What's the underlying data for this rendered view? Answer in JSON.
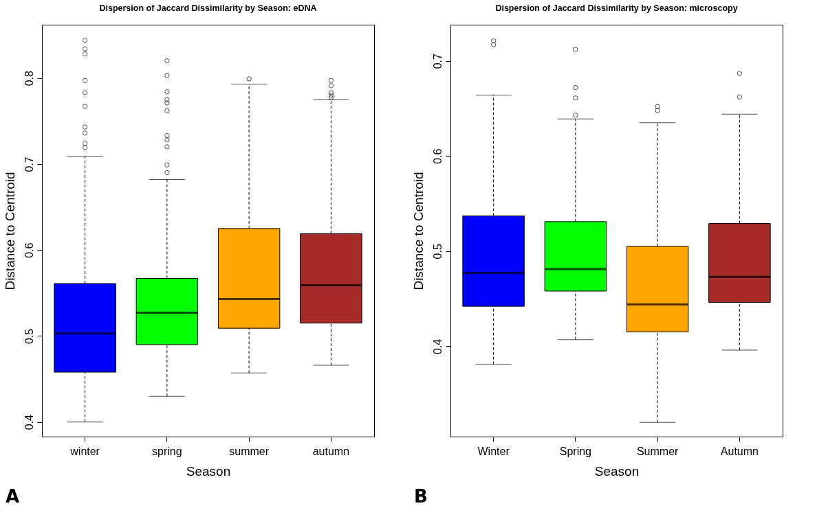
{
  "chart_data": [
    {
      "type": "box",
      "title": "Dispersion of Jaccard Dissimilarity by Season: eDNA",
      "xlabel": "Season",
      "ylabel": "Distance to Centroid",
      "categories": [
        "winter",
        "spring",
        "summer",
        "autumn"
      ],
      "colors": [
        "#0000ff",
        "#00ff00",
        "#ffa500",
        "#a52a2a"
      ],
      "line_style": "dashed",
      "ylim": [
        0.383,
        0.862
      ],
      "yticks": [
        0.4,
        0.5,
        0.6,
        0.7,
        0.8
      ],
      "grid": false,
      "annotations": [
        "A"
      ],
      "boxes": [
        {
          "low": 0.4,
          "q1": 0.458,
          "median": 0.503,
          "q3": 0.561,
          "high": 0.709,
          "outliers": [
            0.844,
            0.834,
            0.828,
            0.797,
            0.783,
            0.767,
            0.743,
            0.736,
            0.724,
            0.719
          ]
        },
        {
          "low": 0.43,
          "q1": 0.49,
          "median": 0.527,
          "q3": 0.567,
          "high": 0.682,
          "outliers": [
            0.82,
            0.803,
            0.784,
            0.775,
            0.771,
            0.762,
            0.733,
            0.728,
            0.72,
            0.699,
            0.69
          ]
        },
        {
          "low": 0.457,
          "q1": 0.509,
          "median": 0.543,
          "q3": 0.625,
          "high": 0.793,
          "outliers": [
            0.799
          ]
        },
        {
          "low": 0.466,
          "q1": 0.515,
          "median": 0.559,
          "q3": 0.619,
          "high": 0.775,
          "outliers": [
            0.797,
            0.791,
            0.783,
            0.78,
            0.777
          ]
        }
      ]
    },
    {
      "type": "box",
      "title": "Dispersion of Jaccard Dissimilarity by Season: microscopy",
      "xlabel": "Season",
      "ylabel": "Distance to Centroid",
      "categories": [
        "Winter",
        "Spring",
        "Summer",
        "Autumn"
      ],
      "colors": [
        "#0000ff",
        "#00ff00",
        "#ffa500",
        "#a52a2a"
      ],
      "line_style": "dashed",
      "ylim": [
        0.305,
        0.738
      ],
      "yticks": [
        0.4,
        0.5,
        0.6,
        0.7
      ],
      "grid": false,
      "annotations": [
        "B"
      ],
      "boxes": [
        {
          "low": 0.381,
          "q1": 0.442,
          "median": 0.477,
          "q3": 0.537,
          "high": 0.664,
          "outliers": [
            0.721,
            0.717
          ]
        },
        {
          "low": 0.407,
          "q1": 0.458,
          "median": 0.481,
          "q3": 0.531,
          "high": 0.639,
          "outliers": [
            0.712,
            0.672,
            0.661,
            0.643
          ]
        },
        {
          "low": 0.32,
          "q1": 0.415,
          "median": 0.444,
          "q3": 0.505,
          "high": 0.635,
          "outliers": [
            0.652,
            0.648
          ]
        },
        {
          "low": 0.396,
          "q1": 0.446,
          "median": 0.473,
          "q3": 0.529,
          "high": 0.644,
          "outliers": [
            0.687,
            0.662
          ]
        }
      ]
    }
  ]
}
